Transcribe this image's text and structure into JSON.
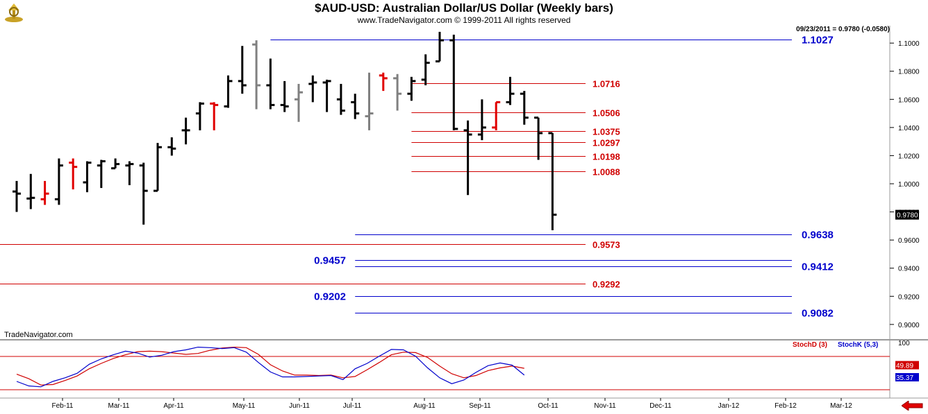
{
  "header": {
    "title": "$AUD-USD:  Australian Dollar/US Dollar  (Weekly bars)",
    "copyright": "www.TradeNavigator.com © 1999-2011 All rights reserved",
    "last_quote": "09/23/2011 = 0.9780 (-0.0580)",
    "brand": "TradeNavigator.com"
  },
  "colors": {
    "up_bar": "#000000",
    "down_bar": "#e00000",
    "neutral_bar": "#808080",
    "resistance": "#d00000",
    "support": "#0000cc",
    "stoch_d": "#d00000",
    "stoch_k": "#0000cc"
  },
  "icons": {
    "logo": "trade-navigator-logo-icon",
    "nav": "back-arrow-icon"
  },
  "chart_data": [
    {
      "type": "ohlc",
      "title": "$AUD-USD:  Australian Dollar/US Dollar  (Weekly bars)",
      "ylim": [
        0.89,
        1.11
      ],
      "y_ticks": [
        "1.1000",
        "1.0800",
        "1.0600",
        "1.0400",
        "1.0200",
        "1.0000",
        "0.9800",
        "0.9600",
        "0.9400",
        "0.9200",
        "0.9000"
      ],
      "x_labels": [
        "Feb-11",
        "Mar-11",
        "Apr-11",
        "May-11",
        "Jun-11",
        "Jul-11",
        "Aug-11",
        "Sep-11",
        "Oct-11",
        "Nov-11",
        "Dec-11",
        "Jan-12",
        "Feb-12",
        "Mar-12"
      ],
      "last_price": "0.9780",
      "bars": [
        {
          "o": 0.9945,
          "h": 1.002,
          "l": 0.98,
          "c": 0.993,
          "color": "up"
        },
        {
          "o": 0.9895,
          "h": 1.007,
          "l": 0.982,
          "c": 0.99,
          "color": "up"
        },
        {
          "o": 0.989,
          "h": 1.002,
          "l": 0.985,
          "c": 0.993,
          "color": "down"
        },
        {
          "o": 0.989,
          "h": 1.018,
          "l": 0.985,
          "c": 1.013,
          "color": "up"
        },
        {
          "o": 1.015,
          "h": 1.018,
          "l": 0.996,
          "c": 1.012,
          "color": "down"
        },
        {
          "o": 1.001,
          "h": 1.016,
          "l": 0.994,
          "c": 1.015,
          "color": "up"
        },
        {
          "o": 1.013,
          "h": 1.017,
          "l": 0.997,
          "c": 1.016,
          "color": "up"
        },
        {
          "o": 1.011,
          "h": 1.018,
          "l": 1.011,
          "c": 1.014,
          "color": "up"
        },
        {
          "o": 1.013,
          "h": 1.016,
          "l": 0.999,
          "c": 1.014,
          "color": "up"
        },
        {
          "o": 1.013,
          "h": 1.015,
          "l": 0.971,
          "c": 0.995,
          "color": "up"
        },
        {
          "o": 0.995,
          "h": 1.029,
          "l": 0.995,
          "c": 1.026,
          "color": "up"
        },
        {
          "o": 1.026,
          "h": 1.033,
          "l": 1.02,
          "c": 1.025,
          "color": "up"
        },
        {
          "o": 1.038,
          "h": 1.047,
          "l": 1.028,
          "c": 1.038,
          "color": "up"
        },
        {
          "o": 1.05,
          "h": 1.058,
          "l": 1.038,
          "c": 1.057,
          "color": "up"
        },
        {
          "o": 1.057,
          "h": 1.058,
          "l": 1.038,
          "c": 1.056,
          "color": "down"
        },
        {
          "o": 1.055,
          "h": 1.077,
          "l": 1.054,
          "c": 1.073,
          "color": "up"
        },
        {
          "o": 1.073,
          "h": 1.098,
          "l": 1.064,
          "c": 1.07,
          "color": "up"
        },
        {
          "o": 1.099,
          "h": 1.102,
          "l": 1.053,
          "c": 1.07,
          "color": "neutral"
        },
        {
          "o": 1.07,
          "h": 1.089,
          "l": 1.053,
          "c": 1.056,
          "color": "up"
        },
        {
          "o": 1.056,
          "h": 1.073,
          "l": 1.051,
          "c": 1.055,
          "color": "up"
        },
        {
          "o": 1.06,
          "h": 1.071,
          "l": 1.044,
          "c": 1.065,
          "color": "neutral"
        },
        {
          "o": 1.071,
          "h": 1.077,
          "l": 1.058,
          "c": 1.072,
          "color": "up"
        },
        {
          "o": 1.072,
          "h": 1.074,
          "l": 1.051,
          "c": 1.073,
          "color": "up"
        },
        {
          "o": 1.06,
          "h": 1.071,
          "l": 1.049,
          "c": 1.052,
          "color": "up"
        },
        {
          "o": 1.058,
          "h": 1.064,
          "l": 1.046,
          "c": 1.05,
          "color": "up"
        },
        {
          "o": 1.048,
          "h": 1.079,
          "l": 1.038,
          "c": 1.05,
          "color": "neutral"
        },
        {
          "o": 1.077,
          "h": 1.079,
          "l": 1.066,
          "c": 1.075,
          "color": "down"
        },
        {
          "o": 1.075,
          "h": 1.078,
          "l": 1.052,
          "c": 1.064,
          "color": "neutral"
        },
        {
          "o": 1.064,
          "h": 1.076,
          "l": 1.059,
          "c": 1.073,
          "color": "up"
        },
        {
          "o": 1.074,
          "h": 1.092,
          "l": 1.07,
          "c": 1.086,
          "color": "up"
        },
        {
          "o": 1.087,
          "h": 1.108,
          "l": 1.087,
          "c": 1.102,
          "color": "up"
        },
        {
          "o": 1.102,
          "h": 1.106,
          "l": 1.038,
          "c": 1.039,
          "color": "up"
        },
        {
          "o": 1.038,
          "h": 1.045,
          "l": 0.992,
          "c": 1.035,
          "color": "up"
        },
        {
          "o": 1.035,
          "h": 1.06,
          "l": 1.031,
          "c": 1.04,
          "color": "up"
        },
        {
          "o": 1.04,
          "h": 1.058,
          "l": 1.038,
          "c": 1.058,
          "color": "down"
        },
        {
          "o": 1.058,
          "h": 1.076,
          "l": 1.056,
          "c": 1.064,
          "color": "up"
        },
        {
          "o": 1.064,
          "h": 1.066,
          "l": 1.042,
          "c": 1.047,
          "color": "up"
        },
        {
          "o": 1.047,
          "h": 1.047,
          "l": 1.017,
          "c": 1.036,
          "color": "up"
        },
        {
          "o": 1.036,
          "h": 1.036,
          "l": 0.967,
          "c": 0.978,
          "color": "up"
        }
      ],
      "levels": [
        {
          "value": 1.1027,
          "label": "1.1027",
          "color": "support",
          "start_bar": 18,
          "end": "right",
          "label_side": "right"
        },
        {
          "value": 1.0716,
          "label": "1.0716",
          "color": "resistance",
          "start_bar": 28,
          "end": "mid",
          "label_side": "right"
        },
        {
          "value": 1.0506,
          "label": "1.0506",
          "color": "resistance",
          "start_bar": 28,
          "end": "mid",
          "label_side": "right"
        },
        {
          "value": 1.0375,
          "label": "1.0375",
          "color": "resistance",
          "start_bar": 28,
          "end": "mid",
          "label_side": "right"
        },
        {
          "value": 1.0297,
          "label": "1.0297",
          "color": "resistance",
          "start_bar": 28,
          "end": "mid",
          "label_side": "right"
        },
        {
          "value": 1.0198,
          "label": "1.0198",
          "color": "resistance",
          "start_bar": 28,
          "end": "mid",
          "label_side": "right"
        },
        {
          "value": 1.0088,
          "label": "1.0088",
          "color": "resistance",
          "start_bar": 28,
          "end": "mid",
          "label_side": "right"
        },
        {
          "value": 0.9638,
          "label": "0.9638",
          "color": "support",
          "start_bar": 24,
          "end": "right",
          "label_side": "right"
        },
        {
          "value": 0.9573,
          "label": "0.9573",
          "color": "resistance",
          "start_bar": -1,
          "end": "mid",
          "label_side": "right"
        },
        {
          "value": 0.9457,
          "label": "0.9457",
          "color": "support",
          "start_bar": 24,
          "end": "right",
          "label_side": "left"
        },
        {
          "value": 0.9412,
          "label": "0.9412",
          "color": "support",
          "start_bar": 24,
          "end": "right",
          "label_side": "right"
        },
        {
          "value": 0.9292,
          "label": "0.9292",
          "color": "resistance",
          "start_bar": -1,
          "end": "mid",
          "label_side": "right"
        },
        {
          "value": 0.9202,
          "label": "0.9202",
          "color": "support",
          "start_bar": 24,
          "end": "right",
          "label_side": "left"
        },
        {
          "value": 0.9082,
          "label": "0.9082",
          "color": "support",
          "start_bar": 24,
          "end": "right",
          "label_side": "right"
        }
      ]
    },
    {
      "type": "line",
      "title": "",
      "ylim": [
        0,
        100
      ],
      "y_ticks": [
        "100"
      ],
      "series": [
        {
          "name": "StochD (3)",
          "color": "stoch_d",
          "last": "49.89",
          "values": [
            36,
            26,
            12,
            13,
            22,
            32,
            48,
            60,
            71,
            79,
            86,
            87,
            86,
            83,
            80,
            82,
            89,
            94,
            96,
            95,
            80,
            57,
            43,
            34,
            34,
            33,
            34,
            28,
            31,
            46,
            62,
            79,
            85,
            84,
            73,
            54,
            37,
            28,
            33,
            44,
            50,
            54,
            49
          ]
        },
        {
          "name": "StochK (5,3)",
          "color": "stoch_k",
          "last": "35.37",
          "values": [
            20,
            10,
            8,
            20,
            28,
            38,
            58,
            70,
            79,
            87,
            83,
            74,
            78,
            86,
            90,
            96,
            95,
            93,
            95,
            85,
            62,
            41,
            30,
            30,
            31,
            32,
            33,
            24,
            48,
            60,
            76,
            91,
            90,
            76,
            50,
            28,
            15,
            23,
            40,
            55,
            61,
            56,
            34
          ]
        }
      ]
    }
  ]
}
